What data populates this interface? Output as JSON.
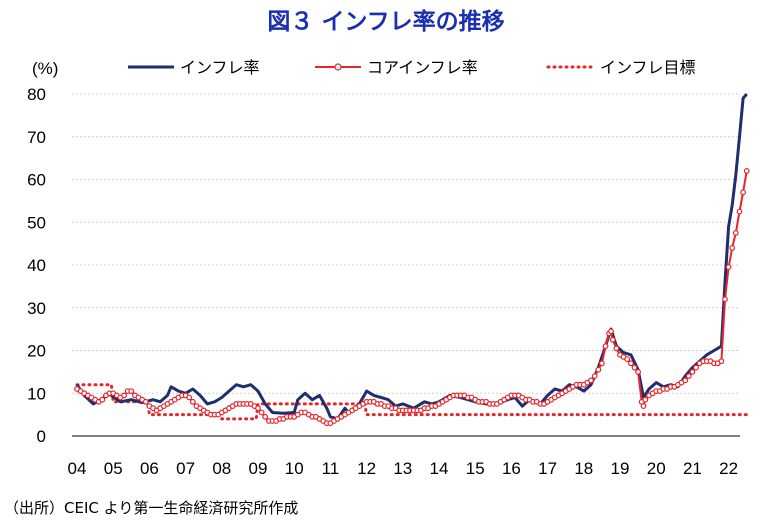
{
  "chart_data": {
    "type": "line",
    "title": "図３ インフレ率の推移",
    "ylabel": "(%)",
    "ylim": [
      0,
      80
    ],
    "yticks": [
      "0",
      "10",
      "20",
      "30",
      "40",
      "50",
      "60",
      "70",
      "80"
    ],
    "xtick_labels": [
      "04",
      "05",
      "06",
      "07",
      "08",
      "09",
      "10",
      "11",
      "12",
      "13",
      "14",
      "15",
      "16",
      "17",
      "18",
      "19",
      "20",
      "21",
      "22"
    ],
    "grid": true,
    "legend_position": "top",
    "series": [
      {
        "name": "インフレ率",
        "color": "#1f2f6e",
        "style": "solid",
        "points": [
          [
            2004.0,
            12.0
          ],
          [
            2004.2,
            9.5
          ],
          [
            2004.45,
            7.5
          ],
          [
            2004.65,
            8.5
          ],
          [
            2004.9,
            9.8
          ],
          [
            2005.2,
            8.0
          ],
          [
            2005.5,
            8.5
          ],
          [
            2005.8,
            7.8
          ],
          [
            2006.1,
            8.5
          ],
          [
            2006.3,
            8.0
          ],
          [
            2006.5,
            9.5
          ],
          [
            2006.6,
            11.5
          ],
          [
            2006.8,
            10.5
          ],
          [
            2007.0,
            10.0
          ],
          [
            2007.2,
            11.0
          ],
          [
            2007.4,
            9.5
          ],
          [
            2007.6,
            7.5
          ],
          [
            2007.8,
            8.0
          ],
          [
            2008.0,
            9.0
          ],
          [
            2008.2,
            10.5
          ],
          [
            2008.4,
            12.0
          ],
          [
            2008.6,
            11.5
          ],
          [
            2008.8,
            12.0
          ],
          [
            2009.0,
            10.5
          ],
          [
            2009.2,
            7.5
          ],
          [
            2009.4,
            5.5
          ],
          [
            2009.7,
            5.3
          ],
          [
            2010.0,
            5.5
          ],
          [
            2010.1,
            8.5
          ],
          [
            2010.3,
            10.0
          ],
          [
            2010.5,
            8.5
          ],
          [
            2010.7,
            9.5
          ],
          [
            2010.9,
            6.5
          ],
          [
            2011.0,
            4.5
          ],
          [
            2011.2,
            4.0
          ],
          [
            2011.4,
            6.5
          ],
          [
            2011.5,
            5.5
          ],
          [
            2011.8,
            7.5
          ],
          [
            2012.0,
            10.5
          ],
          [
            2012.2,
            9.5
          ],
          [
            2012.4,
            9.0
          ],
          [
            2012.6,
            8.5
          ],
          [
            2012.8,
            7.0
          ],
          [
            2013.0,
            7.5
          ],
          [
            2013.3,
            6.5
          ],
          [
            2013.6,
            8.0
          ],
          [
            2013.8,
            7.5
          ],
          [
            2014.0,
            8.0
          ],
          [
            2014.3,
            9.5
          ],
          [
            2014.6,
            9.0
          ],
          [
            2015.0,
            8.0
          ],
          [
            2015.3,
            7.5
          ],
          [
            2015.6,
            7.5
          ],
          [
            2015.9,
            8.5
          ],
          [
            2016.1,
            9.0
          ],
          [
            2016.3,
            7.0
          ],
          [
            2016.5,
            8.5
          ],
          [
            2016.8,
            7.5
          ],
          [
            2017.0,
            9.5
          ],
          [
            2017.2,
            11.0
          ],
          [
            2017.4,
            10.5
          ],
          [
            2017.6,
            12.0
          ],
          [
            2017.8,
            11.5
          ],
          [
            2018.0,
            10.5
          ],
          [
            2018.2,
            12.0
          ],
          [
            2018.4,
            16.0
          ],
          [
            2018.6,
            21.0
          ],
          [
            2018.75,
            25.0
          ],
          [
            2018.9,
            21.0
          ],
          [
            2019.1,
            19.5
          ],
          [
            2019.3,
            19.0
          ],
          [
            2019.5,
            15.5
          ],
          [
            2019.65,
            9.0
          ],
          [
            2019.8,
            11.0
          ],
          [
            2020.0,
            12.5
          ],
          [
            2020.2,
            11.5
          ],
          [
            2020.4,
            12.0
          ],
          [
            2020.6,
            11.5
          ],
          [
            2020.8,
            14.0
          ],
          [
            2021.0,
            16.0
          ],
          [
            2021.2,
            17.5
          ],
          [
            2021.4,
            19.0
          ],
          [
            2021.6,
            20.0
          ],
          [
            2021.8,
            21.0
          ],
          [
            2021.9,
            36.0
          ],
          [
            2022.0,
            49.0
          ],
          [
            2022.1,
            54.0
          ],
          [
            2022.2,
            61.0
          ],
          [
            2022.3,
            70.0
          ],
          [
            2022.4,
            79.0
          ],
          [
            2022.5,
            80.0
          ]
        ]
      },
      {
        "name": "コアインフレ率",
        "color": "#e8242a",
        "style": "solid-markers",
        "points": [
          [
            2004.0,
            11.0
          ],
          [
            2004.1,
            10.5
          ],
          [
            2004.2,
            10.0
          ],
          [
            2004.3,
            9.5
          ],
          [
            2004.4,
            9.0
          ],
          [
            2004.5,
            8.5
          ],
          [
            2004.6,
            8.0
          ],
          [
            2004.7,
            8.5
          ],
          [
            2004.8,
            9.5
          ],
          [
            2004.9,
            10.0
          ],
          [
            2005.0,
            10.0
          ],
          [
            2005.1,
            9.5
          ],
          [
            2005.2,
            9.0
          ],
          [
            2005.3,
            9.5
          ],
          [
            2005.4,
            10.5
          ],
          [
            2005.5,
            10.5
          ],
          [
            2005.6,
            9.5
          ],
          [
            2005.7,
            9.0
          ],
          [
            2005.8,
            8.5
          ],
          [
            2005.9,
            8.0
          ],
          [
            2006.0,
            7.0
          ],
          [
            2006.1,
            6.5
          ],
          [
            2006.2,
            6.0
          ],
          [
            2006.3,
            6.5
          ],
          [
            2006.4,
            7.0
          ],
          [
            2006.5,
            7.5
          ],
          [
            2006.6,
            8.0
          ],
          [
            2006.7,
            8.5
          ],
          [
            2006.8,
            9.0
          ],
          [
            2006.9,
            9.5
          ],
          [
            2007.0,
            9.5
          ],
          [
            2007.1,
            9.0
          ],
          [
            2007.2,
            8.0
          ],
          [
            2007.3,
            7.0
          ],
          [
            2007.4,
            6.5
          ],
          [
            2007.5,
            6.0
          ],
          [
            2007.6,
            5.5
          ],
          [
            2007.7,
            5.0
          ],
          [
            2007.8,
            5.0
          ],
          [
            2007.9,
            5.0
          ],
          [
            2008.0,
            5.5
          ],
          [
            2008.1,
            6.0
          ],
          [
            2008.2,
            6.5
          ],
          [
            2008.3,
            7.0
          ],
          [
            2008.4,
            7.5
          ],
          [
            2008.5,
            7.5
          ],
          [
            2008.6,
            7.5
          ],
          [
            2008.7,
            7.5
          ],
          [
            2008.8,
            7.5
          ],
          [
            2008.9,
            7.0
          ],
          [
            2009.0,
            6.5
          ],
          [
            2009.1,
            5.5
          ],
          [
            2009.2,
            4.5
          ],
          [
            2009.3,
            3.5
          ],
          [
            2009.4,
            3.5
          ],
          [
            2009.5,
            3.5
          ],
          [
            2009.6,
            4.0
          ],
          [
            2009.7,
            4.0
          ],
          [
            2009.8,
            4.5
          ],
          [
            2009.9,
            4.5
          ],
          [
            2010.0,
            4.5
          ],
          [
            2010.1,
            5.0
          ],
          [
            2010.2,
            5.5
          ],
          [
            2010.3,
            5.5
          ],
          [
            2010.4,
            5.0
          ],
          [
            2010.5,
            4.5
          ],
          [
            2010.6,
            4.5
          ],
          [
            2010.7,
            4.0
          ],
          [
            2010.8,
            3.5
          ],
          [
            2010.9,
            3.0
          ],
          [
            2011.0,
            3.0
          ],
          [
            2011.1,
            3.5
          ],
          [
            2011.2,
            4.0
          ],
          [
            2011.3,
            4.5
          ],
          [
            2011.4,
            5.0
          ],
          [
            2011.5,
            5.5
          ],
          [
            2011.6,
            6.0
          ],
          [
            2011.7,
            6.5
          ],
          [
            2011.8,
            7.0
          ],
          [
            2011.9,
            7.5
          ],
          [
            2012.0,
            8.0
          ],
          [
            2012.1,
            8.0
          ],
          [
            2012.2,
            8.0
          ],
          [
            2012.3,
            7.5
          ],
          [
            2012.4,
            7.5
          ],
          [
            2012.5,
            7.0
          ],
          [
            2012.6,
            7.0
          ],
          [
            2012.7,
            6.5
          ],
          [
            2012.8,
            6.5
          ],
          [
            2012.9,
            6.0
          ],
          [
            2013.0,
            6.0
          ],
          [
            2013.1,
            6.0
          ],
          [
            2013.2,
            6.0
          ],
          [
            2013.3,
            6.0
          ],
          [
            2013.4,
            6.0
          ],
          [
            2013.5,
            6.0
          ],
          [
            2013.6,
            6.5
          ],
          [
            2013.7,
            6.5
          ],
          [
            2013.8,
            7.0
          ],
          [
            2013.9,
            7.0
          ],
          [
            2014.0,
            7.5
          ],
          [
            2014.1,
            8.0
          ],
          [
            2014.2,
            8.5
          ],
          [
            2014.3,
            9.0
          ],
          [
            2014.4,
            9.5
          ],
          [
            2014.5,
            9.5
          ],
          [
            2014.6,
            9.5
          ],
          [
            2014.7,
            9.5
          ],
          [
            2014.8,
            9.0
          ],
          [
            2014.9,
            9.0
          ],
          [
            2015.0,
            8.5
          ],
          [
            2015.1,
            8.0
          ],
          [
            2015.2,
            8.0
          ],
          [
            2015.3,
            8.0
          ],
          [
            2015.4,
            7.5
          ],
          [
            2015.5,
            7.5
          ],
          [
            2015.6,
            7.5
          ],
          [
            2015.7,
            8.0
          ],
          [
            2015.8,
            8.5
          ],
          [
            2015.9,
            9.0
          ],
          [
            2016.0,
            9.5
          ],
          [
            2016.1,
            9.5
          ],
          [
            2016.2,
            9.5
          ],
          [
            2016.3,
            9.0
          ],
          [
            2016.4,
            8.5
          ],
          [
            2016.5,
            8.5
          ],
          [
            2016.6,
            8.0
          ],
          [
            2016.7,
            8.0
          ],
          [
            2016.8,
            7.5
          ],
          [
            2016.9,
            7.5
          ],
          [
            2017.0,
            8.0
          ],
          [
            2017.1,
            8.5
          ],
          [
            2017.2,
            9.0
          ],
          [
            2017.3,
            9.5
          ],
          [
            2017.4,
            10.0
          ],
          [
            2017.5,
            10.5
          ],
          [
            2017.6,
            11.0
          ],
          [
            2017.7,
            11.5
          ],
          [
            2017.8,
            12.0
          ],
          [
            2017.9,
            12.0
          ],
          [
            2018.0,
            12.0
          ],
          [
            2018.1,
            12.5
          ],
          [
            2018.2,
            13.0
          ],
          [
            2018.3,
            14.0
          ],
          [
            2018.4,
            15.5
          ],
          [
            2018.5,
            17.0
          ],
          [
            2018.6,
            21.0
          ],
          [
            2018.7,
            24.0
          ],
          [
            2018.75,
            24.5
          ],
          [
            2018.8,
            22.5
          ],
          [
            2018.9,
            20.5
          ],
          [
            2019.0,
            19.0
          ],
          [
            2019.1,
            18.5
          ],
          [
            2019.2,
            18.0
          ],
          [
            2019.3,
            17.0
          ],
          [
            2019.4,
            16.0
          ],
          [
            2019.5,
            15.0
          ],
          [
            2019.6,
            8.0
          ],
          [
            2019.65,
            7.0
          ],
          [
            2019.7,
            8.5
          ],
          [
            2019.8,
            9.5
          ],
          [
            2019.9,
            10.0
          ],
          [
            2020.0,
            10.5
          ],
          [
            2020.1,
            10.5
          ],
          [
            2020.2,
            11.0
          ],
          [
            2020.3,
            11.0
          ],
          [
            2020.4,
            11.5
          ],
          [
            2020.5,
            11.5
          ],
          [
            2020.6,
            12.0
          ],
          [
            2020.7,
            12.5
          ],
          [
            2020.8,
            13.0
          ],
          [
            2020.9,
            14.0
          ],
          [
            2021.0,
            15.0
          ],
          [
            2021.1,
            16.0
          ],
          [
            2021.2,
            17.0
          ],
          [
            2021.3,
            17.5
          ],
          [
            2021.4,
            17.5
          ],
          [
            2021.5,
            17.5
          ],
          [
            2021.6,
            17.0
          ],
          [
            2021.7,
            17.0
          ],
          [
            2021.8,
            17.5
          ],
          [
            2021.9,
            32.0
          ],
          [
            2022.0,
            39.5
          ],
          [
            2022.1,
            44.0
          ],
          [
            2022.2,
            47.5
          ],
          [
            2022.3,
            52.5
          ],
          [
            2022.4,
            57.0
          ],
          [
            2022.5,
            62.0
          ]
        ]
      },
      {
        "name": "インフレ目標",
        "color": "#e8242a",
        "style": "dotted",
        "points": [
          [
            2004.0,
            12.0
          ],
          [
            2004.95,
            12.0
          ],
          [
            2005.0,
            8.0
          ],
          [
            2005.95,
            8.0
          ],
          [
            2006.0,
            5.0
          ],
          [
            2007.95,
            5.0
          ],
          [
            2008.0,
            4.0
          ],
          [
            2008.95,
            4.0
          ],
          [
            2009.0,
            7.5
          ],
          [
            2011.95,
            7.5
          ],
          [
            2012.0,
            5.0
          ],
          [
            2022.5,
            5.0
          ]
        ]
      }
    ]
  },
  "source_note": "（出所）CEIC より第一生命経済研究所作成"
}
